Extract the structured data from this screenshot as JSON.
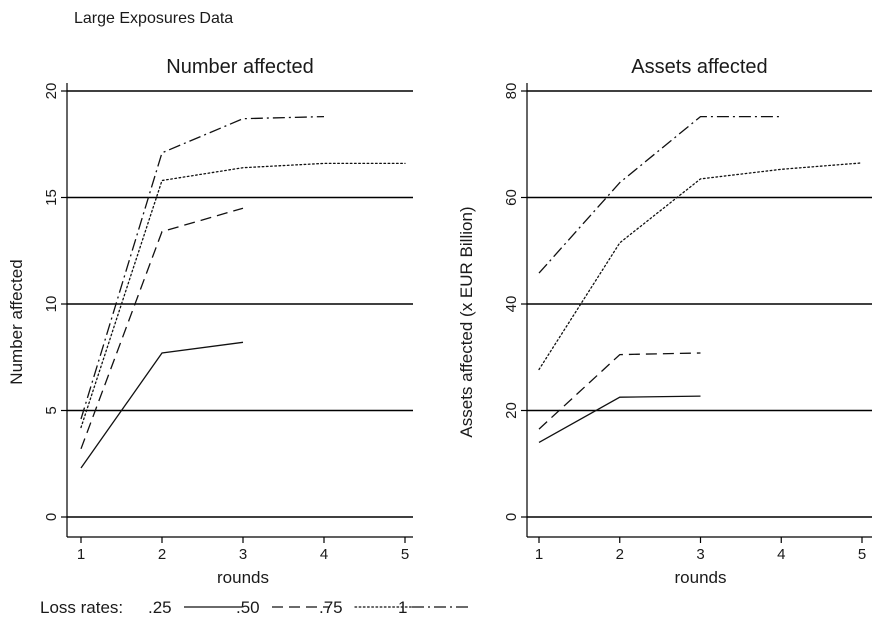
{
  "page_title": "Large Exposures Data",
  "legend": {
    "label": "Loss rates:",
    "entries": [
      {
        "label": ".25",
        "style": "solid"
      },
      {
        "label": ".50",
        "style": "dash"
      },
      {
        "label": ".75",
        "style": "dot"
      },
      {
        "label": "1",
        "style": "dashdot"
      }
    ]
  },
  "chart_data": [
    {
      "type": "line",
      "title": "Number affected",
      "xlabel": "rounds",
      "ylabel": "Number affected",
      "xlim": [
        1,
        5
      ],
      "ylim": [
        0,
        20
      ],
      "xticks": [
        1,
        2,
        3,
        4,
        5
      ],
      "yticks": [
        0,
        5,
        10,
        15,
        20
      ],
      "grid": true,
      "series": [
        {
          "name": ".25",
          "style": "solid",
          "x": [
            1,
            2,
            3
          ],
          "y": [
            2.3,
            7.7,
            8.2
          ]
        },
        {
          "name": ".50",
          "style": "dash",
          "x": [
            1,
            2,
            3
          ],
          "y": [
            3.2,
            13.4,
            14.5
          ]
        },
        {
          "name": ".75",
          "style": "dot",
          "x": [
            1,
            2,
            3,
            4,
            5
          ],
          "y": [
            4.2,
            15.8,
            16.4,
            16.6,
            16.6
          ]
        },
        {
          "name": "1",
          "style": "dashdot",
          "x": [
            1,
            2,
            3,
            4
          ],
          "y": [
            4.6,
            17.1,
            18.7,
            18.8
          ]
        }
      ]
    },
    {
      "type": "line",
      "title": "Assets affected",
      "xlabel": "rounds",
      "ylabel": "Assets affected (x EUR Billion)",
      "xlim": [
        1,
        5
      ],
      "ylim": [
        0,
        80
      ],
      "xticks": [
        1,
        2,
        3,
        4,
        5
      ],
      "yticks": [
        0,
        20,
        40,
        60,
        80
      ],
      "grid": true,
      "series": [
        {
          "name": ".25",
          "style": "solid",
          "x": [
            1,
            2,
            3
          ],
          "y": [
            14,
            22.5,
            22.7
          ]
        },
        {
          "name": ".50",
          "style": "dash",
          "x": [
            1,
            2,
            3
          ],
          "y": [
            16.5,
            30.5,
            30.8
          ]
        },
        {
          "name": ".75",
          "style": "dot",
          "x": [
            1,
            2,
            3,
            4,
            5
          ],
          "y": [
            27.7,
            51.5,
            63.5,
            65.3,
            66.5
          ]
        },
        {
          "name": "1",
          "style": "dashdot",
          "x": [
            1,
            2,
            3,
            4
          ],
          "y": [
            45.8,
            62.8,
            75.2,
            75.2
          ]
        }
      ]
    }
  ]
}
